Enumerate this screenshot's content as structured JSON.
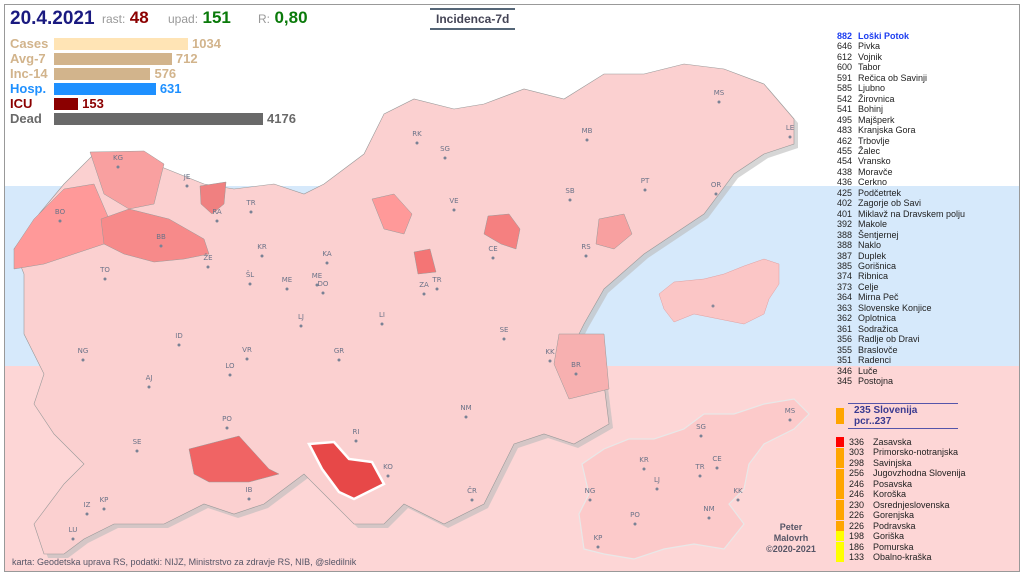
{
  "header": {
    "date": "20.4.2021",
    "rast_label": "rast:",
    "rast_value": "48",
    "upad_label": "upad:",
    "upad_value": "151",
    "r_label": "R:",
    "r_value": "0,80",
    "mode_button": "Incidenca-7d"
  },
  "bars": [
    {
      "label": "Cases",
      "value": "1034",
      "color": "#ffe4b5",
      "label_color": "#d2b48c",
      "fraction": 1.0
    },
    {
      "label": "Avg-7",
      "value": "712",
      "color": "#d2b48c",
      "label_color": "#d2b48c",
      "fraction": 0.88
    },
    {
      "label": "Inc-14",
      "value": "576",
      "color": "#d2b48c",
      "label_color": "#d2b48c",
      "fraction": 0.72
    },
    {
      "label": "Hosp.",
      "value": "631",
      "color": "#1e90ff",
      "label_color": "#1e90ff",
      "fraction": 0.76
    },
    {
      "label": "ICU",
      "value": "153",
      "color": "#8b0000",
      "label_color": "#8b0000",
      "fraction": 0.18
    },
    {
      "label": "Dead",
      "value": "4176",
      "color": "#696969",
      "label_color": "#696969",
      "fraction": 1.56
    }
  ],
  "municipalities": [
    [
      "882",
      "Loški Potok"
    ],
    [
      "646",
      "Pivka"
    ],
    [
      "612",
      "Vojnik"
    ],
    [
      "600",
      "Tabor"
    ],
    [
      "591",
      "Rečica ob Savinji"
    ],
    [
      "585",
      "Ljubno"
    ],
    [
      "542",
      "Žirovnica"
    ],
    [
      "541",
      "Bohinj"
    ],
    [
      "495",
      "Majšperk"
    ],
    [
      "483",
      "Kranjska Gora"
    ],
    [
      "462",
      "Trbovlje"
    ],
    [
      "455",
      "Žalec"
    ],
    [
      "454",
      "Vransko"
    ],
    [
      "438",
      "Moravče"
    ],
    [
      "436",
      "Cerkno"
    ],
    [
      "425",
      "Podčetrtek"
    ],
    [
      "402",
      "Zagorje ob Savi"
    ],
    [
      "401",
      "Miklavž na Dravskem polju"
    ],
    [
      "392",
      "Makole"
    ],
    [
      "388",
      "Šentjernej"
    ],
    [
      "388",
      "Naklo"
    ],
    [
      "387",
      "Duplek"
    ],
    [
      "385",
      "Gorišnica"
    ],
    [
      "374",
      "Ribnica"
    ],
    [
      "373",
      "Celje"
    ],
    [
      "364",
      "Mirna Peč"
    ],
    [
      "363",
      "Slovenske Konjice"
    ],
    [
      "362",
      "Oplotnica"
    ],
    [
      "361",
      "Sodražica"
    ],
    [
      "356",
      "Radlje ob Dravi"
    ],
    [
      "355",
      "Braslovče"
    ],
    [
      "351",
      "Radenci"
    ],
    [
      "346",
      "Luče"
    ],
    [
      "345",
      "Postojna"
    ]
  ],
  "slovenia": {
    "label": "235  Slovenija  pcr..237",
    "color": "#ffa500"
  },
  "regions": [
    [
      "336",
      "Zasavska",
      "#ff0000"
    ],
    [
      "303",
      "Primorsko-notranjska",
      "#ffa500"
    ],
    [
      "298",
      "Savinjska",
      "#ffa500"
    ],
    [
      "256",
      "Jugovzhodna Slovenija",
      "#ffa500"
    ],
    [
      "246",
      "Posavska",
      "#ffa500"
    ],
    [
      "246",
      "Koroška",
      "#ffa500"
    ],
    [
      "230",
      "Osrednjeslovenska",
      "#ffa500"
    ],
    [
      "226",
      "Gorenjska",
      "#ffa500"
    ],
    [
      "226",
      "Podravska",
      "#ffa500"
    ],
    [
      "198",
      "Goriška",
      "#ffff00"
    ],
    [
      "186",
      "Pomurska",
      "#ffff00"
    ],
    [
      "133",
      "Obalno-kraška",
      "#ffff00"
    ]
  ],
  "map_labels": [
    [
      "KG",
      114,
      156
    ],
    [
      "JE",
      183,
      175
    ],
    [
      "RA",
      213,
      210
    ],
    [
      "TR",
      247,
      201
    ],
    [
      "BO",
      56,
      210
    ],
    [
      "BB",
      157,
      235
    ],
    [
      "ŽE",
      204,
      256
    ],
    [
      "KR",
      258,
      245
    ],
    [
      "KA",
      323,
      252
    ],
    [
      "TO",
      101,
      268
    ],
    [
      "ŠL",
      246,
      273
    ],
    [
      "ME",
      283,
      278
    ],
    [
      "ME",
      313,
      274
    ],
    [
      "DO",
      319,
      282
    ],
    [
      "LJ",
      297,
      315
    ],
    [
      "LI",
      378,
      313
    ],
    [
      "ID",
      175,
      334
    ],
    [
      "VR",
      243,
      348
    ],
    [
      "LO",
      226,
      364
    ],
    [
      "GR",
      335,
      349
    ],
    [
      "NG",
      79,
      349
    ],
    [
      "AJ",
      145,
      376
    ],
    [
      "PO",
      223,
      417
    ],
    [
      "SE",
      133,
      440
    ],
    [
      "IB",
      245,
      488
    ],
    [
      "IZ",
      83,
      503
    ],
    [
      "KP",
      100,
      498
    ],
    [
      "LU",
      69,
      528
    ],
    [
      "RI",
      352,
      430
    ],
    [
      "KO",
      384,
      465
    ],
    [
      "NM",
      462,
      406
    ],
    [
      "ČR",
      468,
      489
    ],
    [
      "KK",
      546,
      350
    ],
    [
      "BR",
      572,
      363
    ],
    [
      "SE",
      500,
      328
    ],
    [
      "ZA",
      420,
      283
    ],
    [
      "TR",
      433,
      278
    ],
    [
      "CE",
      489,
      247
    ],
    [
      "RS",
      582,
      245
    ],
    [
      "VE",
      450,
      199
    ],
    [
      "SG",
      441,
      147
    ],
    [
      "RK",
      413,
      132
    ],
    [
      "MB",
      583,
      129
    ],
    [
      "PT",
      641,
      179
    ],
    [
      "SB",
      566,
      189
    ],
    [
      "OR",
      712,
      183
    ],
    [
      "MS",
      715,
      91
    ],
    [
      "LE",
      786,
      126
    ]
  ],
  "mini_labels": [
    [
      "MS",
      786,
      409
    ],
    [
      "SG",
      697,
      425
    ],
    [
      "KR",
      640,
      458
    ],
    [
      "LJ",
      653,
      478
    ],
    [
      "TR",
      696,
      465
    ],
    [
      "CE",
      713,
      457
    ],
    [
      "NG",
      586,
      489
    ],
    [
      "KK",
      734,
      489
    ],
    [
      "NM",
      705,
      507
    ],
    [
      "PO",
      631,
      513
    ],
    [
      "KP",
      594,
      536
    ]
  ],
  "author": [
    "Peter",
    "Malovrh",
    "©2020-2021"
  ],
  "footer": "karta: Geodetska uprava RS,  podatki: NIJZ, Ministrstvo za zdravje RS, NIB, @sledilnik"
}
